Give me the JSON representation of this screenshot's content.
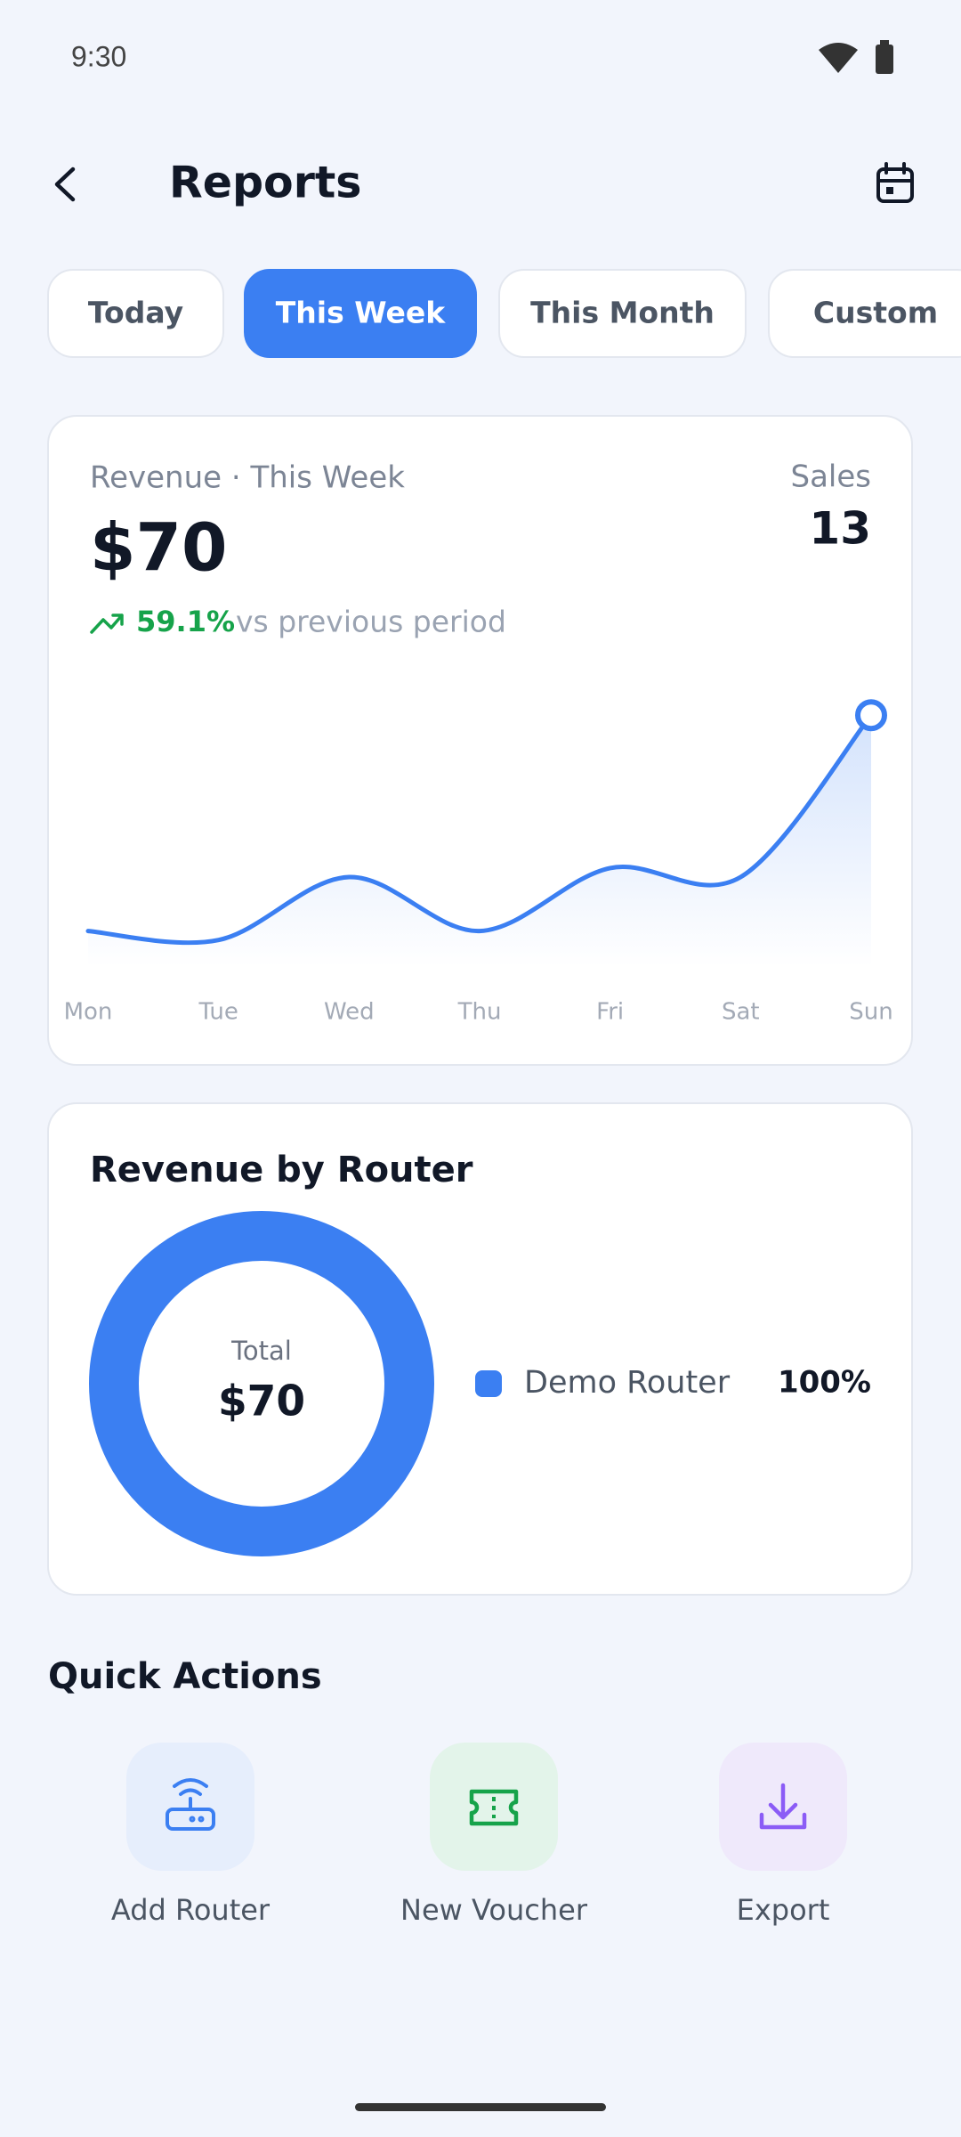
{
  "status_bar": {
    "time": "9:30"
  },
  "header": {
    "title": "Reports"
  },
  "tabs": {
    "items": [
      "Today",
      "This Week",
      "This Month",
      "Custom"
    ],
    "active": 1
  },
  "revenue_card": {
    "label": "Revenue · This Week",
    "amount": "$70",
    "sales_label": "Sales",
    "sales": 13,
    "change": "59.1%",
    "change_text": "vs previous period",
    "chart": {
      "type": "line",
      "categories": [
        "Mon",
        "Tue",
        "Wed",
        "Thu",
        "Fri",
        "Sat",
        "Sun"
      ],
      "values": [
        4,
        3,
        10,
        4,
        11,
        10,
        28
      ],
      "color": "#3b7ff2",
      "ylim": [
        0,
        30
      ]
    }
  },
  "router_card": {
    "chart": {
      "type": "pie",
      "title": "Revenue by Router",
      "center_label": "Total",
      "center_value": "$70",
      "categories": [
        "Demo Router"
      ],
      "values": [
        100
      ],
      "value_labels": [
        "100%"
      ],
      "colors": [
        "#3b7ff2"
      ]
    }
  },
  "quick_actions": {
    "title": "Quick Actions",
    "items": [
      "Add Router",
      "New Voucher",
      "Export"
    ]
  }
}
